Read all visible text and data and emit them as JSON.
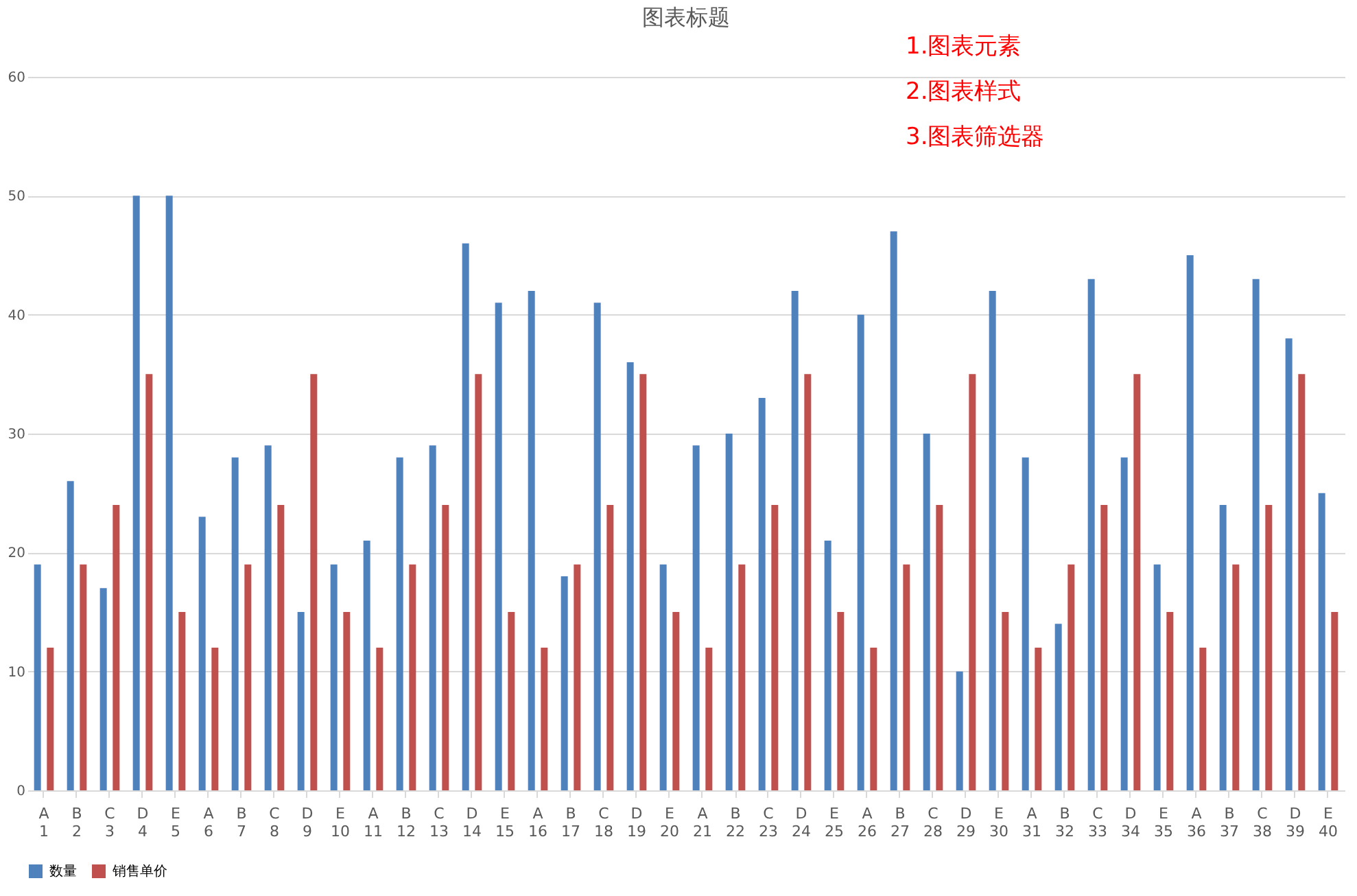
{
  "chart_data": {
    "type": "bar",
    "title": "图表标题",
    "categories": [
      "A\n1",
      "B\n2",
      "C\n3",
      "D\n4",
      "E\n5",
      "A\n6",
      "B\n7",
      "C\n8",
      "D\n9",
      "E\n10",
      "A\n11",
      "B\n12",
      "C\n13",
      "D\n14",
      "E\n15",
      "A\n16",
      "B\n17",
      "C\n18",
      "D\n19",
      "E\n20",
      "A\n21",
      "B\n22",
      "C\n23",
      "D\n24",
      "E\n25",
      "A\n26",
      "B\n27",
      "C\n28",
      "D\n29",
      "E\n30",
      "A\n31",
      "B\n32",
      "C\n33",
      "D\n34",
      "E\n35",
      "A\n36",
      "B\n37",
      "C\n38",
      "D\n39",
      "E\n40"
    ],
    "series": [
      {
        "name": "数量",
        "color": "#4f81bd",
        "values": [
          19,
          26,
          17,
          50,
          50,
          23,
          28,
          29,
          15,
          19,
          21,
          28,
          29,
          46,
          41,
          42,
          18,
          41,
          36,
          19,
          29,
          30,
          33,
          42,
          21,
          40,
          47,
          30,
          10,
          42,
          28,
          14,
          43,
          28,
          19,
          45,
          24,
          43,
          38,
          25
        ]
      },
      {
        "name": "销售单价",
        "color": "#c0504d",
        "values": [
          12,
          19,
          24,
          35,
          15,
          12,
          19,
          24,
          35,
          15,
          12,
          19,
          24,
          35,
          15,
          12,
          19,
          24,
          35,
          15,
          12,
          19,
          24,
          35,
          15,
          12,
          19,
          24,
          35,
          15,
          12,
          19,
          24,
          35,
          15,
          12,
          19,
          24,
          35,
          15
        ]
      }
    ],
    "ylim": [
      0,
      60
    ],
    "yticks": [
      0,
      10,
      20,
      30,
      40,
      50,
      60
    ],
    "grid": "y",
    "legend": "bottom",
    "annotations": [
      "1.图表元素",
      "2.图表样式",
      "3.图表筛选器"
    ]
  }
}
